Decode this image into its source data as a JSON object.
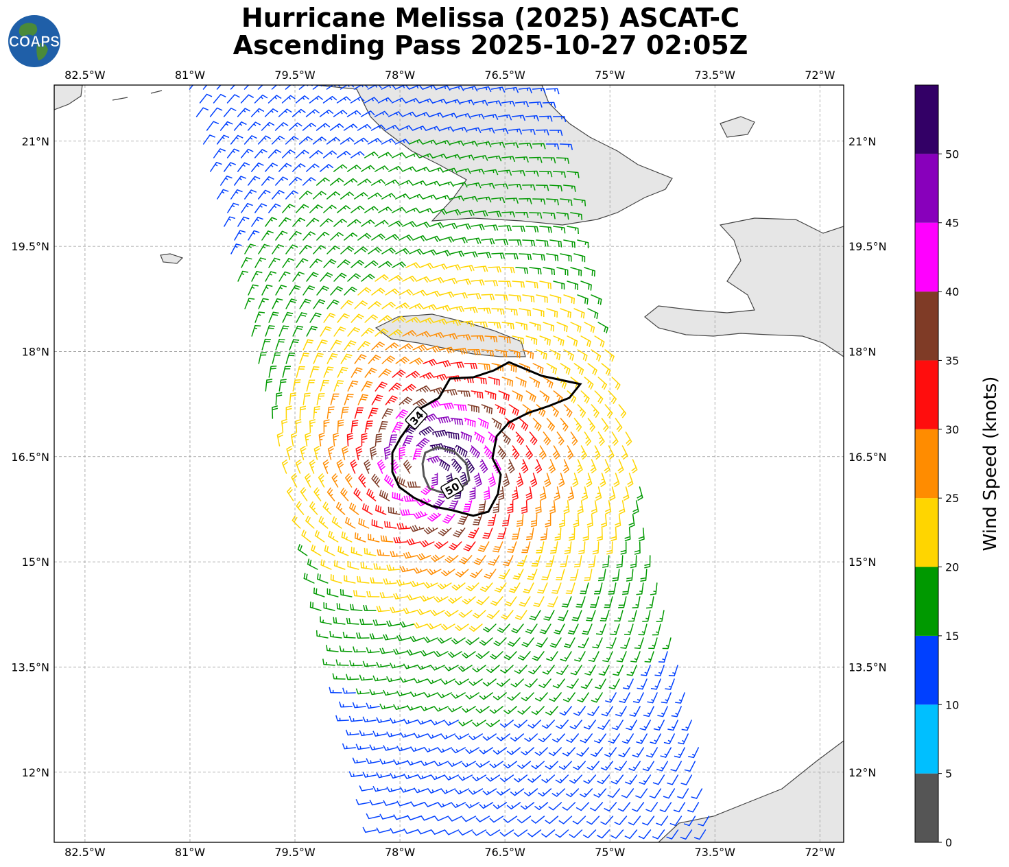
{
  "title": {
    "line1": "Hurricane Melissa (2025) ASCAT-C",
    "line2": "Ascending Pass 2025-10-27 02:05Z"
  },
  "logo": {
    "text": "COAPS",
    "icon": "globe-logo-icon",
    "ocean": "#1f5fa8",
    "land": "#4a8a3a"
  },
  "map": {
    "lon_range": [
      -82.94,
      -71.66
    ],
    "lat_range": [
      11.0,
      21.8
    ],
    "land_color": "#e4e4e4",
    "coast_color": "#444444",
    "lon_ticks": [
      "82.5°W",
      "81°W",
      "79.5°W",
      "78°W",
      "76.5°W",
      "75°W",
      "73.5°W",
      "72°W"
    ],
    "lon_tick_values": [
      -82.5,
      -81.0,
      -79.5,
      -78.0,
      -76.5,
      -75.0,
      -73.5,
      -72.0
    ],
    "lat_ticks": [
      "12°N",
      "13.5°N",
      "15°N",
      "16.5°N",
      "18°N",
      "19.5°N",
      "21°N"
    ],
    "lat_tick_values": [
      12.0,
      13.5,
      15.0,
      16.5,
      18.0,
      19.5,
      21.0
    ],
    "gridlines": true
  },
  "storm": {
    "center": {
      "lon": -77.62,
      "lat": 16.32
    },
    "swath_lon_offset_per_deg_lat": -0.245
  },
  "contours": [
    {
      "label": "34",
      "color": "#000000"
    },
    {
      "label": "50",
      "color": "#555555"
    }
  ],
  "colorbar": {
    "label": "Wind Speed (knots)",
    "tick_labels": [
      "0",
      "5",
      "10",
      "15",
      "20",
      "25",
      "30",
      "35",
      "40",
      "45",
      "50"
    ],
    "bins": [
      {
        "min": 0,
        "max": 5,
        "color": "#555555"
      },
      {
        "min": 5,
        "max": 10,
        "color": "#00bfff"
      },
      {
        "min": 10,
        "max": 15,
        "color": "#0040ff"
      },
      {
        "min": 15,
        "max": 20,
        "color": "#009900"
      },
      {
        "min": 20,
        "max": 25,
        "color": "#ffd500"
      },
      {
        "min": 25,
        "max": 30,
        "color": "#ff8c00"
      },
      {
        "min": 30,
        "max": 35,
        "color": "#ff0d0d"
      },
      {
        "min": 35,
        "max": 40,
        "color": "#7f3b26"
      },
      {
        "min": 40,
        "max": 45,
        "color": "#ff00ff"
      },
      {
        "min": 45,
        "max": 50,
        "color": "#8800bb"
      },
      {
        "min": 50,
        "max": 55,
        "color": "#330066"
      }
    ]
  }
}
